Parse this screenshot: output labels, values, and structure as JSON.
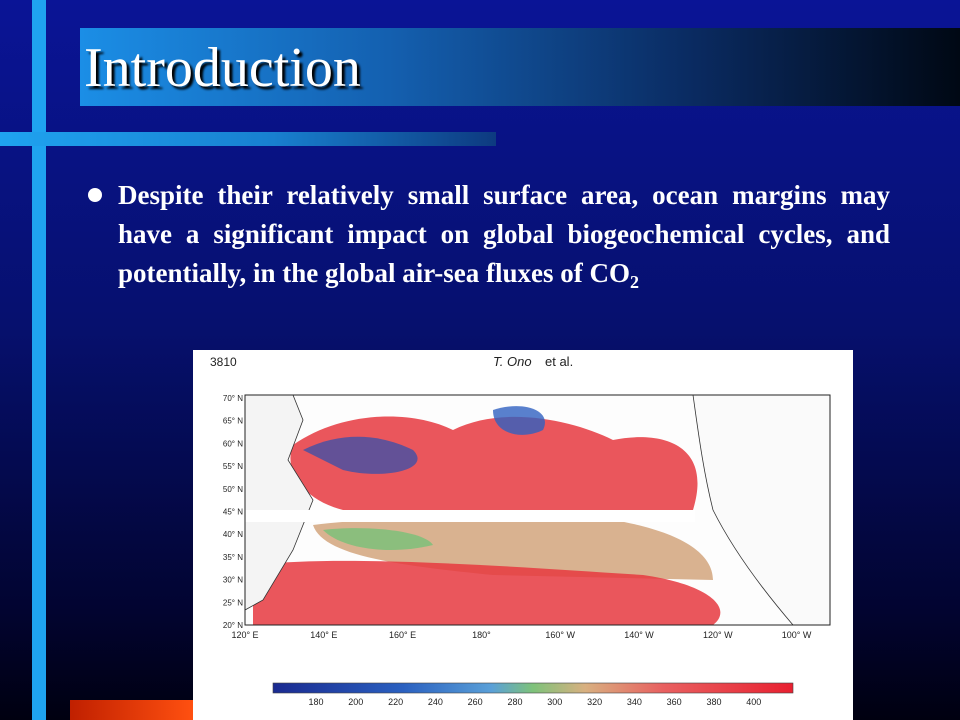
{
  "slide": {
    "title": "Introduction",
    "bullet": {
      "text": "Despite their relatively small surface area, ocean margins may have a significant impact on global biogeochemical cycles, and potentially, in the global air-sea fluxes of CO",
      "subscript": "2"
    }
  },
  "figure": {
    "page_number": "3810",
    "author": "T. Ono",
    "author_suffix": "et al.",
    "latitude_labels": [
      "70° N",
      "65° N",
      "60° N",
      "55° N",
      "50° N",
      "45° N",
      "40° N",
      "35° N",
      "30° N",
      "25° N",
      "20° N"
    ],
    "longitude_labels": [
      "120° E",
      "140° E",
      "160° E",
      "180°",
      "160° W",
      "140° W",
      "120° W",
      "100° W"
    ],
    "colorbar_labels": [
      180,
      200,
      220,
      240,
      260,
      280,
      300,
      320,
      340,
      360,
      380,
      400
    ]
  }
}
